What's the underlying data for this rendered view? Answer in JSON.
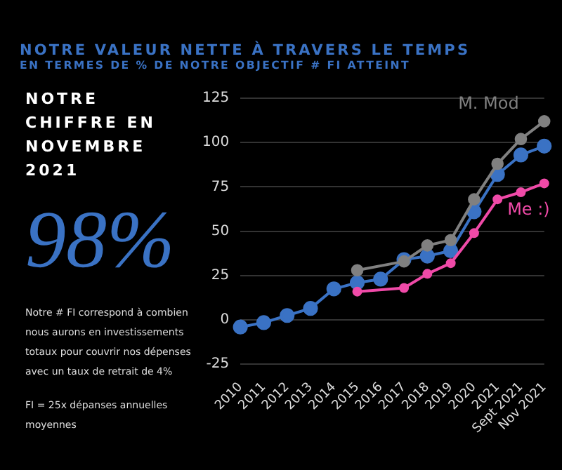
{
  "chart_data": {
    "type": "line",
    "title": "NOTRE VALEUR NETTE À TRAVERS LE TEMPS",
    "subtitle": "EN TERMES DE % DE NOTRE OBJECTIF # FI ATTEINT",
    "annotations": [
      "NOTRE CHIFFRE EN NOVEMBRE 2021",
      "98%",
      "Notre # FI correspond à combien nous aurons en investissements totaux pour couvrir nos dépenses avec un taux de retrait de 4%",
      "FI = 25x dépanses annuelles moyennes"
    ],
    "categories": [
      "2010",
      "2011",
      "2012",
      "2013",
      "2014",
      "2015",
      "2016",
      "2017",
      "2018",
      "2019",
      "2020",
      "2021",
      "Sept 2021",
      "Nov 2021"
    ],
    "series": [
      {
        "color": "#3a72c4",
        "values": [
          -4,
          -1.5,
          2.5,
          6.5,
          17.5,
          21,
          23,
          34,
          36,
          39,
          61,
          82,
          93,
          98
        ]
      },
      {
        "name": "M. Mod",
        "color": "#808080",
        "values": [
          null,
          null,
          null,
          null,
          null,
          28,
          null,
          33,
          42,
          45,
          68,
          88,
          102,
          112
        ]
      },
      {
        "name": "Me :)",
        "color": "#f04aa8",
        "values": [
          null,
          null,
          null,
          null,
          null,
          16,
          null,
          18,
          26,
          32,
          49,
          68,
          72,
          77
        ]
      }
    ],
    "ylim": [
      -25,
      125
    ],
    "yticks": [
      -25,
      0,
      25,
      50,
      75,
      100,
      125
    ],
    "grid": "y",
    "marker": "circle",
    "line_style": "solid",
    "legend": false
  }
}
